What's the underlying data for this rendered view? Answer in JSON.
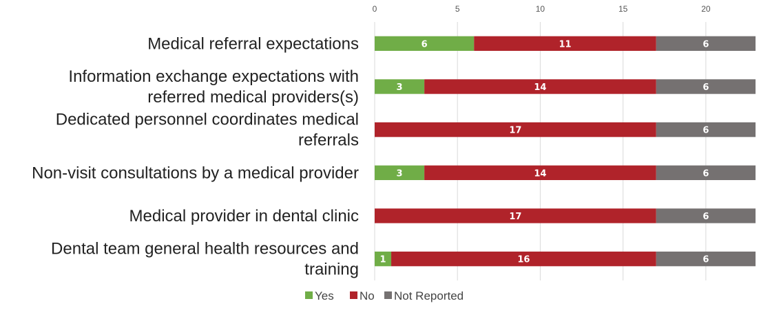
{
  "chart_data": {
    "type": "bar",
    "orientation": "horizontal",
    "stacked": true,
    "title": "",
    "xlabel": "",
    "ylabel": "",
    "xlim": [
      0,
      23
    ],
    "x_ticks": [
      0,
      5,
      10,
      15,
      20
    ],
    "grid": true,
    "legend_position": "bottom",
    "categories": [
      [
        "Medical referral expectations"
      ],
      [
        "Information exchange expectations with",
        "referred medical providers(s)"
      ],
      [
        "Dedicated personnel coordinates medical",
        "referrals"
      ],
      [
        "Non-visit consultations by a medical provider"
      ],
      [
        "Medical provider in dental clinic"
      ],
      [
        "Dental team general health resources and",
        "training"
      ]
    ],
    "series": [
      {
        "name": "Yes",
        "color": "#70ad47",
        "values": [
          6,
          3,
          0,
          3,
          0,
          1
        ]
      },
      {
        "name": "No",
        "color": "#b0232a",
        "values": [
          11,
          14,
          17,
          14,
          17,
          16
        ]
      },
      {
        "name": "Not Reported",
        "color": "#757171",
        "values": [
          6,
          6,
          6,
          6,
          6,
          6
        ]
      }
    ]
  }
}
